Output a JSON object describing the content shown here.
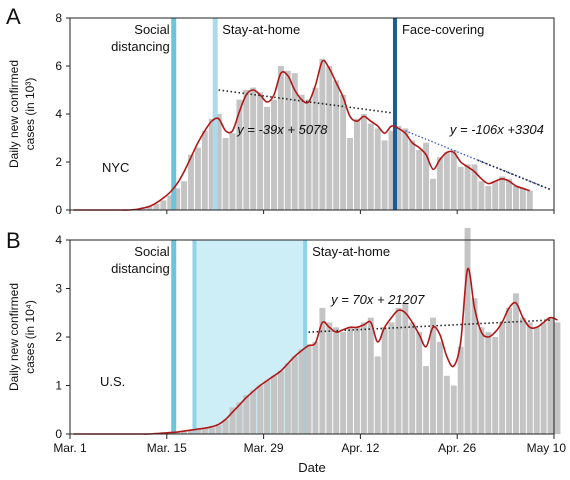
{
  "figure": {
    "xlabel": "Date",
    "x_ticks": [
      "Mar. 1",
      "Mar. 15",
      "Mar. 29",
      "Apr. 12",
      "Apr. 26",
      "May 10"
    ],
    "colors": {
      "bars": "#c4c4c4",
      "smooth_line": "#b01818",
      "social_band": "#6cc4dc",
      "stay_band_nyc": "#a8dcec",
      "face_band": "#1a5c96",
      "us_stay_shade": "#cdeef6",
      "us_stay_edge": "#8ed4e8",
      "trend_dotted": "#222222",
      "trend_blue": "#3355cc"
    }
  },
  "chart_data": [
    {
      "panel_label": "A",
      "type": "bar",
      "region": "NYC",
      "ylabel": [
        "Daily new confirmed",
        "cases (in 10³)"
      ],
      "ylim": [
        0,
        8
      ],
      "yticks": [
        0,
        2,
        4,
        6,
        8
      ],
      "x_start": "2020-03-01",
      "x_end": "2020-05-10",
      "values": [
        0,
        0,
        0,
        0,
        0,
        0,
        0,
        0,
        0,
        0.05,
        0.1,
        0.15,
        0.25,
        0.4,
        0.6,
        0.9,
        1.2,
        2.3,
        2.6,
        3.3,
        3.8,
        4.0,
        3.0,
        3.2,
        4.6,
        5.0,
        5.1,
        4.9,
        4.3,
        4.6,
        6.0,
        5.8,
        5.7,
        4.8,
        4.6,
        5.1,
        6.3,
        6.0,
        5.4,
        4.8,
        3.0,
        3.8,
        4.0,
        3.6,
        3.4,
        2.9,
        3.3,
        3.5,
        3.4,
        2.9,
        2.5,
        2.8,
        1.3,
        2.2,
        2.4,
        2.5,
        1.8,
        1.9,
        1.9,
        1.2,
        1.0,
        1.2,
        1.4,
        1.3,
        1.0,
        0.9,
        0.8
      ],
      "smooth": [
        0,
        0,
        0,
        0,
        0,
        0,
        0,
        0,
        0,
        0.02,
        0.08,
        0.15,
        0.3,
        0.5,
        0.75,
        1.1,
        1.6,
        2.2,
        2.8,
        3.3,
        3.7,
        3.8,
        3.3,
        3.3,
        4.1,
        4.8,
        5.0,
        4.8,
        4.5,
        4.8,
        5.7,
        5.6,
        5.0,
        4.6,
        4.5,
        5.2,
        6.2,
        5.9,
        5.3,
        4.7,
        3.9,
        3.7,
        3.9,
        3.7,
        3.5,
        3.2,
        3.5,
        3.4,
        3.2,
        2.8,
        2.6,
        2.3,
        1.7,
        2.1,
        2.4,
        2.4,
        2.0,
        1.8,
        1.6,
        1.3,
        1.1,
        1.2,
        1.3,
        1.2,
        1.0,
        0.9,
        0.8
      ],
      "events": [
        {
          "label_lines": [
            "Social",
            "distancing"
          ],
          "date": "2020-03-16"
        },
        {
          "label_lines": [
            "Stay-at-home"
          ],
          "date": "2020-03-22"
        },
        {
          "label_lines": [
            "Face-covering"
          ],
          "date": "2020-04-17"
        }
      ],
      "fits": [
        {
          "equation": "y = -39x + 5078",
          "from": "2020-03-22",
          "to": "2020-04-16",
          "y_start": 5.0,
          "y_end": 4.05
        },
        {
          "equation": "y = -106x +3304",
          "from": "2020-04-18",
          "to": "2020-05-09",
          "y_start": 3.3,
          "y_end": 0.85
        }
      ]
    },
    {
      "panel_label": "B",
      "type": "bar",
      "region": "U.S.",
      "ylabel": [
        "Daily new confirmed",
        "cases (in 10⁴)"
      ],
      "ylim": [
        0,
        4
      ],
      "yticks": [
        0,
        1,
        2,
        3,
        4
      ],
      "x_start": "2020-03-01",
      "x_end": "2020-05-10",
      "values": [
        0,
        0,
        0,
        0,
        0,
        0,
        0,
        0,
        0,
        0,
        0,
        0,
        0.01,
        0.02,
        0.03,
        0.05,
        0.06,
        0.08,
        0.1,
        0.12,
        0.15,
        0.18,
        0.3,
        0.55,
        0.65,
        0.8,
        0.9,
        1.0,
        1.1,
        1.2,
        1.3,
        1.45,
        1.6,
        1.75,
        1.85,
        1.9,
        2.6,
        2.3,
        2.2,
        2.1,
        2.2,
        2.2,
        2.3,
        2.4,
        1.6,
        2.2,
        2.3,
        2.6,
        2.7,
        2.3,
        2.1,
        1.4,
        2.4,
        1.9,
        1.2,
        1.0,
        1.8,
        4.25,
        2.8,
        2.2,
        2.1,
        2.0,
        2.3,
        2.6,
        2.9,
        2.4,
        2.3,
        2.2,
        2.3,
        2.4,
        2.3
      ],
      "smooth": [
        0,
        0,
        0,
        0,
        0,
        0,
        0,
        0,
        0,
        0,
        0,
        0,
        0.01,
        0.02,
        0.03,
        0.04,
        0.06,
        0.08,
        0.1,
        0.12,
        0.15,
        0.2,
        0.3,
        0.45,
        0.6,
        0.75,
        0.88,
        1.0,
        1.1,
        1.2,
        1.3,
        1.45,
        1.6,
        1.72,
        1.82,
        1.88,
        2.3,
        2.2,
        2.1,
        2.15,
        2.2,
        2.2,
        2.25,
        2.3,
        1.9,
        2.2,
        2.4,
        2.55,
        2.5,
        2.3,
        2.05,
        1.8,
        2.2,
        2.05,
        1.6,
        1.4,
        1.9,
        3.4,
        2.6,
        2.1,
        2.0,
        2.1,
        2.3,
        2.6,
        2.7,
        2.4,
        2.2,
        2.2,
        2.3,
        2.4,
        2.35
      ],
      "events": [
        {
          "label_lines": [
            "Social",
            "distancing"
          ],
          "date": "2020-03-16"
        },
        {
          "label_lines": [
            "Stay-at-home"
          ],
          "date": "2020-04-04"
        }
      ],
      "stay_range": [
        "2020-03-19",
        "2020-04-04"
      ],
      "fits": [
        {
          "equation": "y = 70x + 21207",
          "from": "2020-04-04",
          "to": "2020-05-09",
          "y_start": 2.1,
          "y_end": 2.35
        }
      ]
    }
  ]
}
